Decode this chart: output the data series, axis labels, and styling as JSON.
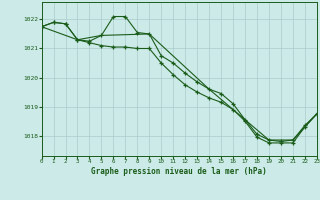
{
  "title": "Graphe pression niveau de la mer (hPa)",
  "bg_color": "#cceae7",
  "grid_color": "#aacccc",
  "line_color": "#1a5c1a",
  "marker_color": "#1a5c1a",
  "label_color": "#1a5c1a",
  "ylim": [
    1017.3,
    1022.6
  ],
  "xlim": [
    0,
    23
  ],
  "yticks": [
    1018,
    1019,
    1020,
    1021,
    1022
  ],
  "xticks": [
    0,
    1,
    2,
    3,
    4,
    5,
    6,
    7,
    8,
    9,
    10,
    11,
    12,
    13,
    14,
    15,
    16,
    17,
    18,
    19,
    20,
    21,
    22,
    23
  ],
  "line1": [
    1021.75,
    1021.9,
    1021.85,
    1021.3,
    1021.25,
    1021.45,
    1022.1,
    1022.1,
    1021.55,
    1021.5,
    1020.75,
    1020.5,
    1020.15,
    1019.85,
    1019.6,
    1019.45,
    1019.1,
    1018.55,
    1018.05,
    1017.85,
    1017.8,
    1017.85,
    1018.35,
    1018.75
  ],
  "line2": [
    1021.75,
    1021.9,
    1021.85,
    1021.3,
    1021.2,
    1021.1,
    1021.05,
    1021.05,
    1021.0,
    1021.0,
    1020.5,
    1020.1,
    1019.75,
    1019.5,
    1019.3,
    1019.15,
    1018.9,
    1018.5,
    1017.95,
    1017.75,
    1017.75,
    1017.75,
    1018.3,
    1018.75
  ],
  "line3_x": [
    0,
    3,
    5,
    9,
    14,
    19,
    21,
    23
  ],
  "line3_y": [
    1021.75,
    1021.3,
    1021.45,
    1021.5,
    1019.6,
    1017.85,
    1017.85,
    1018.75
  ]
}
